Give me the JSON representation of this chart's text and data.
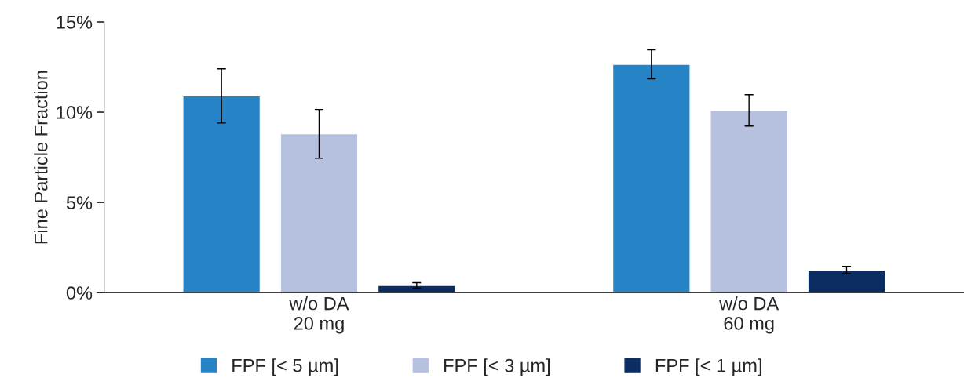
{
  "chart_data": {
    "type": "bar",
    "ylabel": "Fine Particle Fraction",
    "categories": [
      "w/o DA\n20 mg",
      "w/o DA\n60 mg"
    ],
    "series": [
      {
        "name": "FPF [< 5 µm]",
        "color": "#2683c6",
        "values": [
          10.9,
          12.65
        ],
        "errors": [
          1.5,
          0.8
        ]
      },
      {
        "name": "FPF [< 3 µm]",
        "color": "#b6c1e0",
        "values": [
          8.8,
          10.1
        ],
        "errors": [
          1.35,
          0.87
        ]
      },
      {
        "name": "FPF [< 1 µm]",
        "color": "#0c2d62",
        "values": [
          0.4,
          1.25
        ],
        "errors": [
          0.15,
          0.2
        ]
      }
    ],
    "ylim": [
      0,
      15
    ],
    "yticks": [
      {
        "value": 0,
        "label": "0%"
      },
      {
        "value": 5,
        "label": "5%"
      },
      {
        "value": 10,
        "label": "10%"
      },
      {
        "value": 15,
        "label": "15%"
      }
    ],
    "grid": false,
    "legend": "bottom"
  }
}
